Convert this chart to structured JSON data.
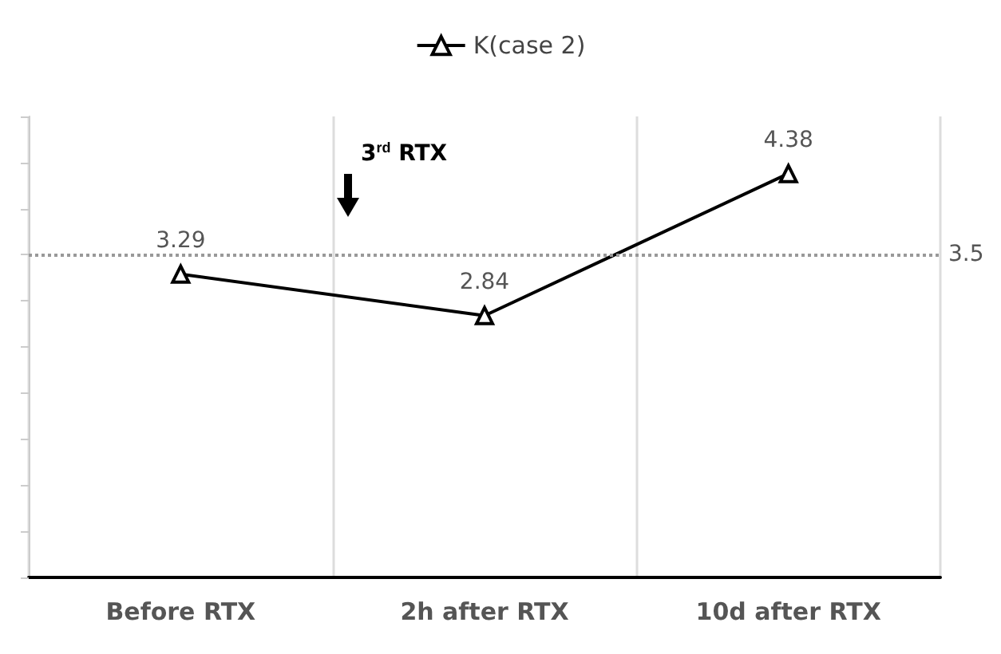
{
  "chart_data": {
    "type": "line",
    "categories": [
      "Before RTX",
      "2h after RTX",
      "10d after RTX"
    ],
    "series": [
      {
        "name": "K(case 2)",
        "color": "#000000",
        "values": [
          3.29,
          2.84,
          4.38
        ]
      }
    ],
    "ylim": [
      0,
      5
    ],
    "yticks": [
      {
        "value": 0,
        "label": null
      },
      {
        "value": 0.5,
        "label": null
      },
      {
        "value": 1,
        "label": null
      },
      {
        "value": 1.5,
        "label": null
      },
      {
        "value": 2,
        "label": null
      },
      {
        "value": 2.5,
        "label": null
      },
      {
        "value": 3,
        "label": null
      },
      {
        "value": 3.5,
        "label": null
      },
      {
        "value": 4,
        "label": null
      },
      {
        "value": 4.5,
        "label": null
      },
      {
        "value": 5,
        "label": null
      }
    ],
    "tick_labels": "x",
    "grid": "x",
    "legend": "top",
    "marker": "triangle",
    "line_style": "solid",
    "data_labels": true,
    "ref_lines": [
      {
        "axis": "y",
        "value": 3.5,
        "label": "3.5",
        "color": "#999999",
        "line_style": "dotted"
      }
    ],
    "annotations": [
      "3$^{rd}$ RTX"
    ]
  }
}
